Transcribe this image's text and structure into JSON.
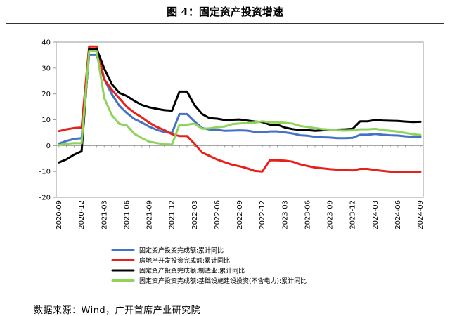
{
  "title": "图 4：固定资产投资增速",
  "source": "数据来源：Wind，广开首席产业研究院",
  "chart_data": {
    "type": "line",
    "ylim": [
      -20,
      40
    ],
    "yticks": [
      -20,
      -10,
      0,
      10,
      20,
      30,
      40
    ],
    "grid": false,
    "legend_position": "bottom",
    "x": [
      "2020-09",
      "2020-10",
      "2020-11",
      "2020-12",
      "2021-01",
      "2021-02",
      "2021-03",
      "2021-04",
      "2021-05",
      "2021-06",
      "2021-07",
      "2021-08",
      "2021-09",
      "2021-10",
      "2021-11",
      "2021-12",
      "2022-01",
      "2022-02",
      "2022-03",
      "2022-04",
      "2022-05",
      "2022-06",
      "2022-07",
      "2022-08",
      "2022-09",
      "2022-10",
      "2022-11",
      "2022-12",
      "2023-01",
      "2023-02",
      "2023-03",
      "2023-04",
      "2023-05",
      "2023-06",
      "2023-07",
      "2023-08",
      "2023-09",
      "2023-10",
      "2023-11",
      "2023-12",
      "2024-01",
      "2024-02",
      "2024-03",
      "2024-04",
      "2024-05",
      "2024-06",
      "2024-07",
      "2024-08",
      "2024-09"
    ],
    "xtick_labels": [
      "2020-09",
      "2020-12",
      "2021-03",
      "2021-06",
      "2021-09",
      "2021-12",
      "2022-03",
      "2022-06",
      "2022-09",
      "2022-12",
      "2023-03",
      "2023-06",
      "2023-09",
      "2023-12",
      "2024-03",
      "2024-06",
      "2024-09"
    ],
    "series": [
      {
        "name": "固定资产投资完成额:累计同比",
        "color": "#4472C4",
        "values": [
          0.8,
          1.8,
          2.6,
          2.9,
          35.0,
          35.0,
          25.6,
          19.9,
          15.4,
          12.6,
          10.3,
          8.9,
          7.3,
          6.1,
          5.2,
          4.9,
          12.2,
          12.2,
          9.3,
          6.8,
          6.2,
          6.1,
          5.7,
          5.8,
          5.9,
          5.8,
          5.3,
          5.1,
          5.5,
          5.5,
          5.1,
          4.7,
          4.0,
          3.8,
          3.4,
          3.2,
          3.1,
          2.9,
          2.9,
          3.0,
          4.2,
          4.2,
          4.5,
          4.2,
          4.0,
          3.9,
          3.6,
          3.4,
          3.4
        ]
      },
      {
        "name": "房地产开发投资完成额:累计同比",
        "color": "#E8201A",
        "values": [
          5.6,
          6.3,
          6.8,
          7.0,
          38.3,
          38.3,
          25.6,
          21.6,
          18.3,
          15.0,
          12.7,
          10.9,
          8.8,
          7.2,
          6.0,
          4.4,
          3.7,
          3.7,
          0.7,
          -2.7,
          -4.0,
          -5.4,
          -6.4,
          -7.4,
          -8.0,
          -8.8,
          -9.8,
          -10.0,
          -5.7,
          -5.7,
          -5.8,
          -6.2,
          -7.2,
          -7.9,
          -8.5,
          -8.8,
          -9.1,
          -9.3,
          -9.4,
          -9.6,
          -9.0,
          -9.0,
          -9.5,
          -9.8,
          -10.1,
          -10.1,
          -10.2,
          -10.2,
          -10.1
        ]
      },
      {
        "name": "固定资产投资完成额:制造业:累计同比",
        "color": "#000000",
        "values": [
          -6.5,
          -5.3,
          -3.5,
          -2.2,
          37.3,
          37.3,
          29.8,
          23.8,
          20.4,
          19.2,
          17.3,
          15.7,
          14.8,
          14.2,
          13.7,
          13.5,
          20.9,
          20.9,
          15.6,
          12.2,
          10.6,
          10.4,
          9.9,
          10.0,
          10.1,
          9.7,
          9.3,
          9.1,
          8.1,
          8.1,
          7.0,
          6.4,
          6.0,
          6.0,
          5.7,
          5.9,
          6.2,
          6.2,
          6.3,
          6.5,
          9.4,
          9.4,
          9.9,
          9.7,
          9.6,
          9.5,
          9.3,
          9.1,
          9.2
        ]
      },
      {
        "name": "固定资产投资完成额:基础设施建设投资(不含电力):累计同比",
        "color": "#8ED35A",
        "values": [
          0.2,
          0.7,
          1.0,
          0.9,
          36.6,
          36.6,
          18.4,
          11.8,
          8.4,
          7.8,
          4.6,
          2.9,
          1.5,
          1.0,
          0.5,
          0.4,
          8.1,
          8.1,
          8.5,
          6.5,
          6.7,
          7.1,
          7.4,
          8.3,
          8.6,
          8.7,
          8.9,
          9.4,
          9.0,
          9.0,
          8.8,
          8.5,
          7.6,
          7.2,
          6.8,
          6.4,
          6.2,
          5.9,
          5.8,
          5.9,
          6.3,
          6.3,
          6.5,
          6.0,
          5.7,
          5.4,
          4.9,
          4.4,
          4.1
        ]
      }
    ]
  }
}
